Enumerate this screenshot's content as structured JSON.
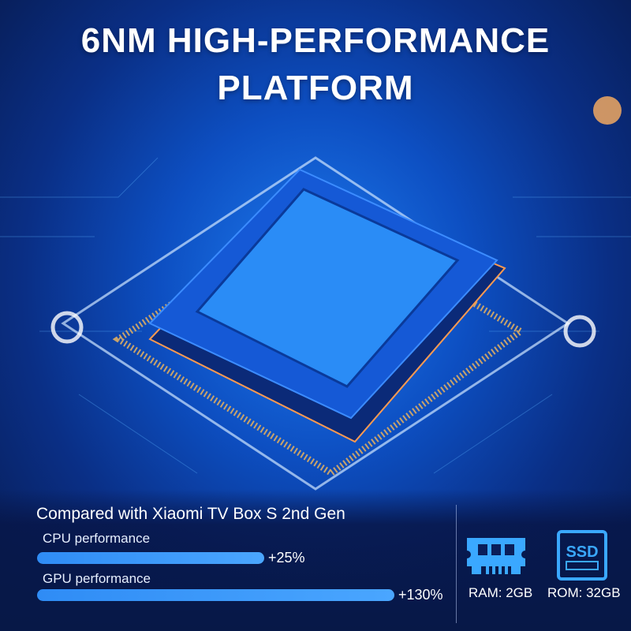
{
  "header": {
    "title_line1": "6NM HIGH-PERFORMANCE",
    "title_line2": "PLATFORM"
  },
  "comparison": {
    "heading": "Compared with Xiaomi TV Box S 2nd Gen",
    "items": [
      {
        "label": "CPU performance",
        "value": "+25%",
        "percent": 25
      },
      {
        "label": "GPU performance",
        "value": "+130%",
        "percent": 130
      }
    ]
  },
  "specs": [
    {
      "icon": "ram-icon",
      "label": "RAM: 2GB"
    },
    {
      "icon": "ssd-icon",
      "label": "ROM: 32GB",
      "icon_text": "SSD"
    }
  ],
  "colors": {
    "accent": "#3d9bff",
    "background": "#0a2f86"
  }
}
